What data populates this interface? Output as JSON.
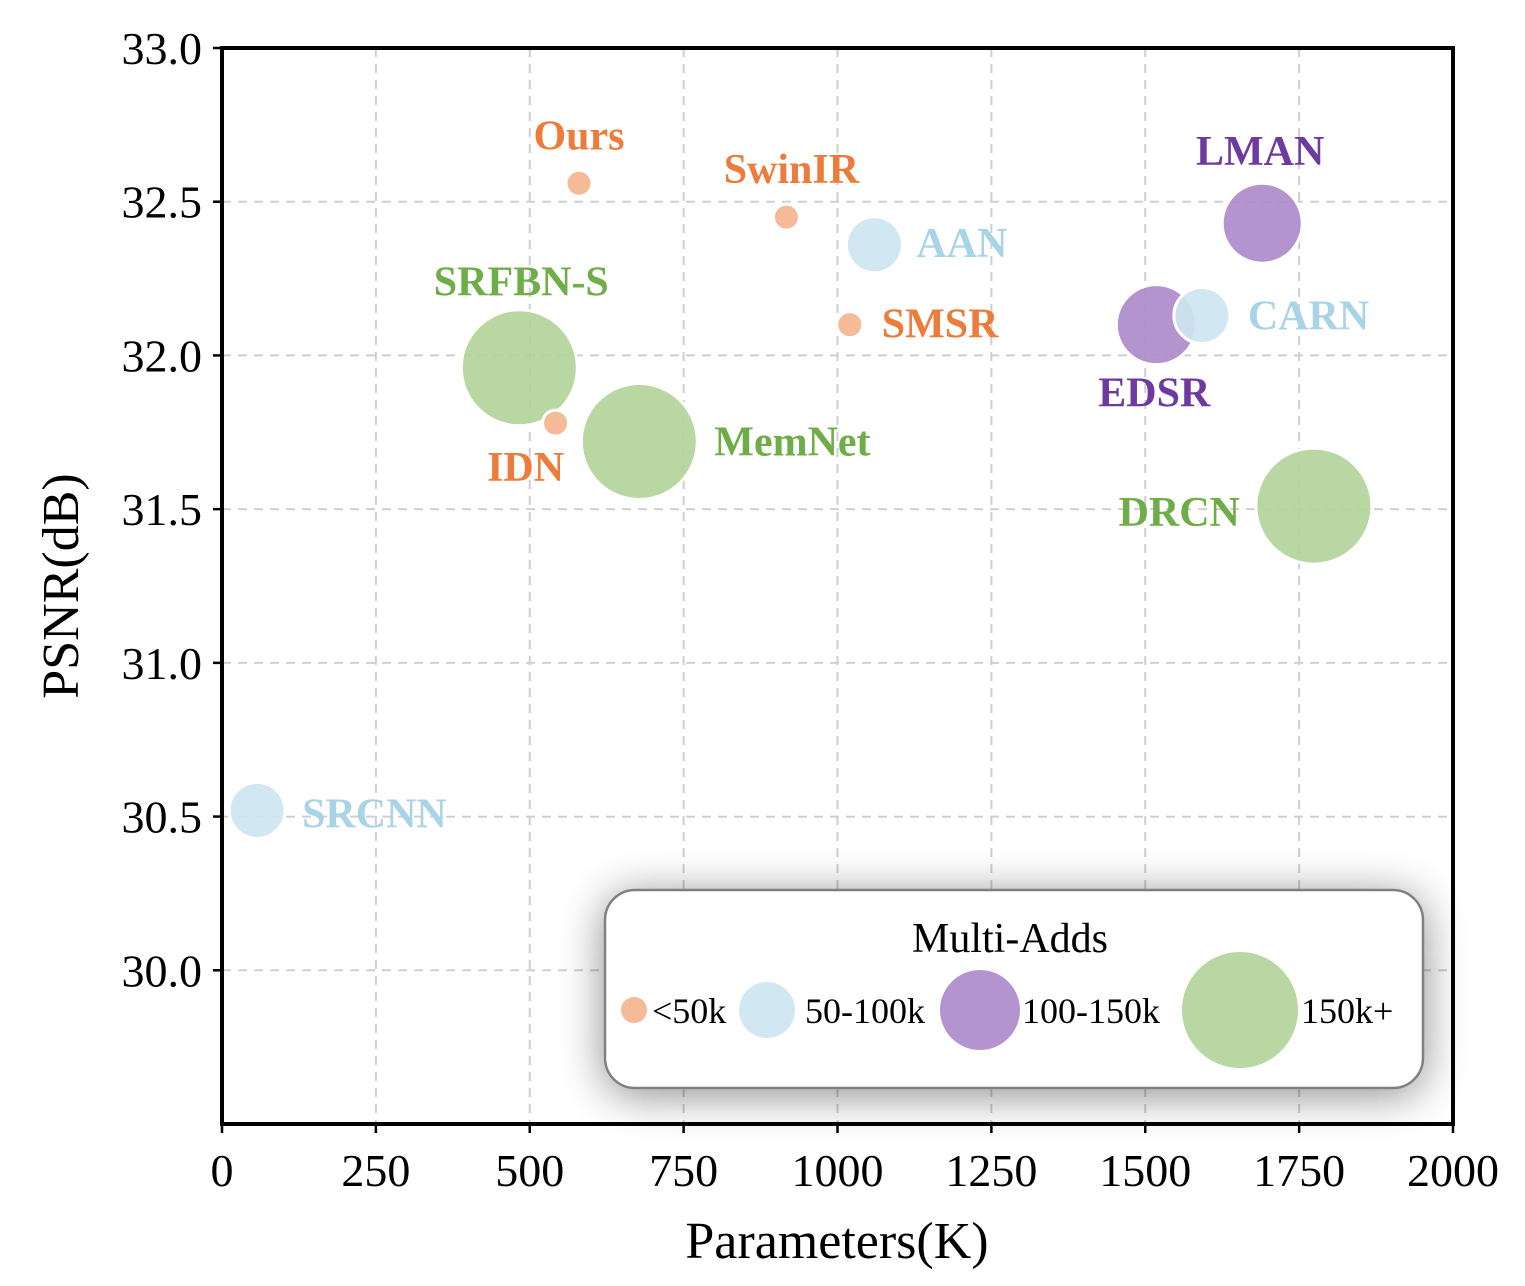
{
  "chart_data": {
    "type": "scatter",
    "xlabel": "Parameters(K)",
    "ylabel": "PSNR(dB)",
    "xlim": [
      0,
      2000
    ],
    "ylim": [
      29.5,
      33.0
    ],
    "xticks": [
      0,
      250,
      500,
      750,
      1000,
      1250,
      1500,
      1750,
      2000
    ],
    "yticks": [
      30.0,
      30.5,
      31.0,
      31.5,
      32.0,
      32.5,
      33.0
    ],
    "xtick_labels": [
      "0",
      "250",
      "500",
      "750",
      "1000",
      "1250",
      "1500",
      "1750",
      "2000"
    ],
    "ytick_labels": [
      "30.0",
      "30.5",
      "31.0",
      "31.5",
      "32.0",
      "32.5",
      "33.0"
    ],
    "grid": true,
    "categories": [
      {
        "key": "lt50k",
        "label": "<50k",
        "fill": "#f4b48e",
        "text": "#ec7c3c"
      },
      {
        "key": "50-100k",
        "label": "50-100k",
        "fill": "#cde5f0",
        "text": "#a9d4e7"
      },
      {
        "key": "100-150k",
        "label": "100-150k",
        "fill": "#ac8bcb",
        "text": "#6e3aa0"
      },
      {
        "key": "150k+",
        "label": "150k+",
        "fill": "#b2d49a",
        "text": "#6ead48"
      }
    ],
    "points": [
      {
        "name": "Ours",
        "x": 580,
        "y": 32.56,
        "category": "lt50k"
      },
      {
        "name": "SwinIR",
        "x": 917,
        "y": 32.45,
        "category": "lt50k"
      },
      {
        "name": "SMSR",
        "x": 1020,
        "y": 32.1,
        "category": "lt50k"
      },
      {
        "name": "IDN",
        "x": 542,
        "y": 31.78,
        "category": "lt50k"
      },
      {
        "name": "AAN",
        "x": 1060,
        "y": 32.36,
        "category": "50-100k"
      },
      {
        "name": "CARN",
        "x": 1592,
        "y": 32.13,
        "category": "50-100k"
      },
      {
        "name": "SRCNN",
        "x": 57,
        "y": 30.52,
        "category": "50-100k"
      },
      {
        "name": "LMAN",
        "x": 1690,
        "y": 32.43,
        "category": "100-150k"
      },
      {
        "name": "EDSR",
        "x": 1518,
        "y": 32.1,
        "category": "100-150k"
      },
      {
        "name": "SRFBN-S",
        "x": 483,
        "y": 31.96,
        "category": "150k+"
      },
      {
        "name": "MemNet",
        "x": 678,
        "y": 31.72,
        "category": "150k+"
      },
      {
        "name": "DRCN",
        "x": 1774,
        "y": 31.51,
        "category": "150k+"
      }
    ],
    "legend": {
      "title": "Multi-Adds",
      "placement": "lower-right"
    }
  }
}
